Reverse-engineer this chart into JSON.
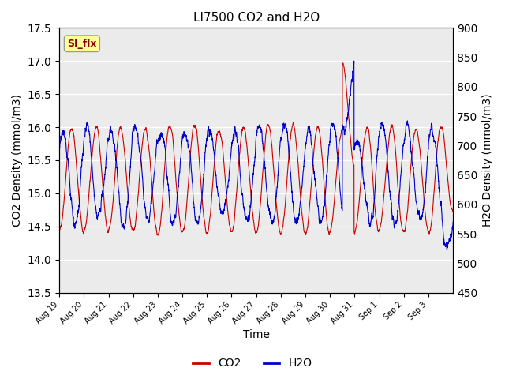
{
  "title": "LI7500 CO2 and H2O",
  "xlabel": "Time",
  "ylabel_left": "CO2 Density (mmol/m3)",
  "ylabel_right": "H2O Density (mmol/m3)",
  "co2_color": "#cc0000",
  "h2o_color": "#0000cc",
  "ylim_left": [
    13.5,
    17.5
  ],
  "ylim_right": [
    450,
    900
  ],
  "yticks_left": [
    13.5,
    14.0,
    14.5,
    15.0,
    15.5,
    16.0,
    16.5,
    17.0,
    17.5
  ],
  "yticks_right": [
    450,
    500,
    550,
    600,
    650,
    700,
    750,
    800,
    850,
    900
  ],
  "x_tick_labels": [
    "Aug 19",
    "Aug 20",
    "Aug 21",
    "Aug 22",
    "Aug 23",
    "Aug 24",
    "Aug 25",
    "Aug 26",
    "Aug 27",
    "Aug 28",
    "Aug 29",
    "Aug 30",
    "Aug 31",
    "Sep 1",
    "Sep 2",
    "Sep 3"
  ],
  "watermark_text": "SI_flx",
  "plot_bg_color": "#ebebeb",
  "n_points": 3360,
  "days": 16,
  "seed": 42
}
